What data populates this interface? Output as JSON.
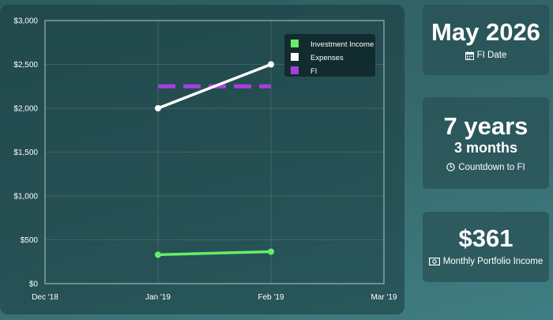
{
  "chart_data": {
    "type": "line",
    "x_ticks": [
      "Dec '18",
      "Jan '19",
      "Feb '19",
      "Mar '19"
    ],
    "y_ticks": [
      "$0",
      "$500",
      "$1,000",
      "$1,500",
      "$2,000",
      "$2,500",
      "$3,000"
    ],
    "ylim": [
      0,
      3000
    ],
    "x_categories": [
      "Jan '19",
      "Feb '19"
    ],
    "series": [
      {
        "name": "Investment Income",
        "values": [
          330,
          365
        ],
        "color": "#66ee66",
        "style": "solid"
      },
      {
        "name": "Expenses",
        "values": [
          2000,
          2500
        ],
        "color": "#ffffff",
        "style": "solid"
      },
      {
        "name": "FI",
        "values": [
          2250,
          2250
        ],
        "color": "#a63fe0",
        "style": "dashed"
      }
    ],
    "grid": true,
    "legend": "top-right"
  },
  "cards": {
    "fi_date": {
      "value": "May 2026",
      "label": "FI Date",
      "icon": "calendar-icon"
    },
    "countdown": {
      "value": "7 years",
      "value2": "3 months",
      "label": "Countdown to FI",
      "icon": "clock-icon"
    },
    "income": {
      "value": "$361",
      "label": "Monthly Portfolio Income",
      "icon": "money-icon"
    }
  }
}
